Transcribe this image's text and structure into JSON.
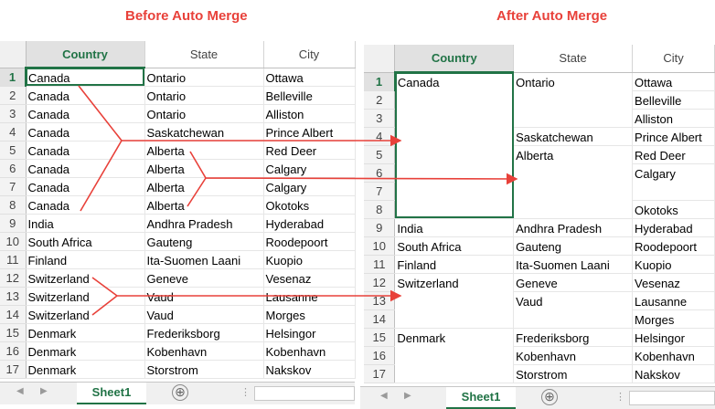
{
  "captions": {
    "before": "Before Auto Merge",
    "after": "After Auto Merge"
  },
  "columns": [
    "Country",
    "State",
    "City"
  ],
  "row_numbers": [
    "1",
    "2",
    "3",
    "4",
    "5",
    "6",
    "7",
    "8",
    "9",
    "10",
    "11",
    "12",
    "13",
    "14",
    "15",
    "16",
    "17"
  ],
  "before_rows": [
    [
      "Canada",
      "Ontario",
      "Ottawa"
    ],
    [
      "Canada",
      "Ontario",
      "Belleville"
    ],
    [
      "Canada",
      "Ontario",
      "Alliston"
    ],
    [
      "Canada",
      "Saskatchewan",
      "Prince Albert"
    ],
    [
      "Canada",
      "Alberta",
      "Red Deer"
    ],
    [
      "Canada",
      "Alberta",
      "Calgary"
    ],
    [
      "Canada",
      "Alberta",
      "Calgary"
    ],
    [
      "Canada",
      "Alberta",
      "Okotoks"
    ],
    [
      "India",
      "Andhra Pradesh",
      "Hyderabad"
    ],
    [
      "South Africa",
      "Gauteng",
      "Roodepoort"
    ],
    [
      "Finland",
      "Ita-Suomen Laani",
      "Kuopio"
    ],
    [
      "Switzerland",
      "Geneve",
      "Vesenaz"
    ],
    [
      "Switzerland",
      "Vaud",
      "Lausanne"
    ],
    [
      "Switzerland",
      "Vaud",
      "Morges"
    ],
    [
      "Denmark",
      "Frederiksborg",
      "Helsingor"
    ],
    [
      "Denmark",
      "Kobenhavn",
      "Kobenhavn"
    ],
    [
      "Denmark",
      "Storstrom",
      "Nakskov"
    ]
  ],
  "after": {
    "country_groups": [
      {
        "value": "Canada",
        "start": 1,
        "span": 8
      },
      {
        "value": "India",
        "start": 9,
        "span": 1
      },
      {
        "value": "South Africa",
        "start": 10,
        "span": 1
      },
      {
        "value": "Finland",
        "start": 11,
        "span": 1
      },
      {
        "value": "Switzerland",
        "start": 12,
        "span": 3
      },
      {
        "value": "Denmark",
        "start": 15,
        "span": 3
      }
    ],
    "state_groups": [
      {
        "value": "Ontario",
        "start": 1,
        "span": 3
      },
      {
        "value": "Saskatchewan",
        "start": 4,
        "span": 1
      },
      {
        "value": "Alberta",
        "start": 5,
        "span": 4
      },
      {
        "value": "Andhra Pradesh",
        "start": 9,
        "span": 1
      },
      {
        "value": "Gauteng",
        "start": 10,
        "span": 1
      },
      {
        "value": "Ita-Suomen Laani",
        "start": 11,
        "span": 1
      },
      {
        "value": "Geneve",
        "start": 12,
        "span": 1
      },
      {
        "value": "Vaud",
        "start": 13,
        "span": 2
      },
      {
        "value": "Frederiksborg",
        "start": 15,
        "span": 1
      },
      {
        "value": "Kobenhavn",
        "start": 16,
        "span": 1
      },
      {
        "value": "Storstrom",
        "start": 17,
        "span": 1
      }
    ],
    "city_groups": [
      {
        "value": "Ottawa",
        "start": 1,
        "span": 1
      },
      {
        "value": "Belleville",
        "start": 2,
        "span": 1
      },
      {
        "value": "Alliston",
        "start": 3,
        "span": 1
      },
      {
        "value": "Prince Albert",
        "start": 4,
        "span": 1
      },
      {
        "value": "Red Deer",
        "start": 5,
        "span": 1
      },
      {
        "value": "Calgary",
        "start": 6,
        "span": 2
      },
      {
        "value": "Okotoks",
        "start": 8,
        "span": 1
      },
      {
        "value": "Hyderabad",
        "start": 9,
        "span": 1
      },
      {
        "value": "Roodepoort",
        "start": 10,
        "span": 1
      },
      {
        "value": "Kuopio",
        "start": 11,
        "span": 1
      },
      {
        "value": "Vesenaz",
        "start": 12,
        "span": 1
      },
      {
        "value": "Lausanne",
        "start": 13,
        "span": 1
      },
      {
        "value": "Morges",
        "start": 14,
        "span": 1
      },
      {
        "value": "Helsingor",
        "start": 15,
        "span": 1
      },
      {
        "value": "Kobenhavn",
        "start": 16,
        "span": 1
      },
      {
        "value": "Nakskov",
        "start": 17,
        "span": 1
      }
    ]
  },
  "sheet_tab": "Sheet1",
  "add_sheet_symbol": "⊕",
  "nav_left": "◀",
  "nav_right": "▶",
  "ellipsis": "⋮",
  "colors": {
    "accent": "#217346",
    "arrow": "#e8413a",
    "caption": "#e8413a"
  }
}
